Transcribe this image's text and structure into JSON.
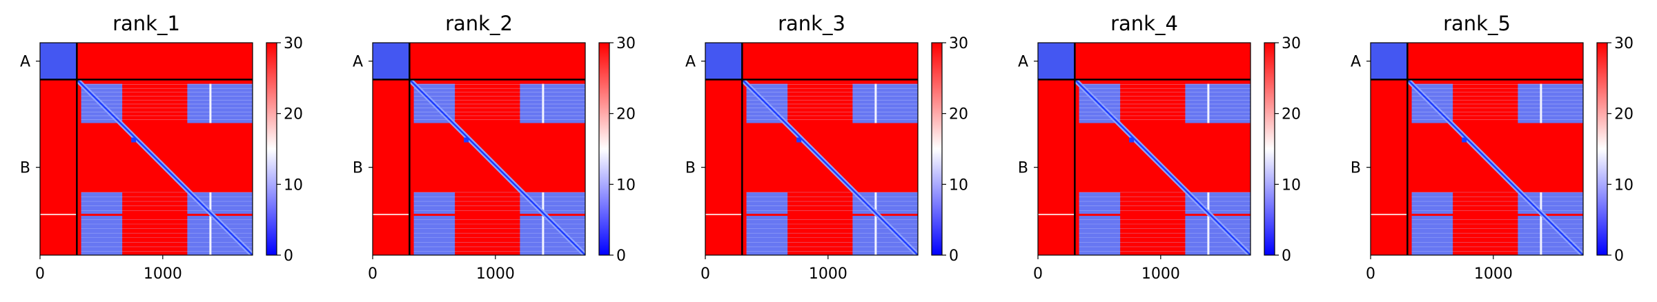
{
  "colorbar": {
    "ticks": [
      "0",
      "10",
      "20",
      "30"
    ],
    "vmin": 0,
    "vmax": 30,
    "colormap": [
      "#0000ff",
      "#ffffff",
      "#ff0000"
    ]
  },
  "chart_data": [
    {
      "type": "heatmap",
      "title": "rank_1",
      "xticks": [
        "0",
        "1000"
      ],
      "yticks": [
        "A",
        "B"
      ],
      "xlim": [
        0,
        1732
      ],
      "chain_boundary": 300,
      "cmap": "bwr",
      "vmin": 0,
      "vmax": 30
    },
    {
      "type": "heatmap",
      "title": "rank_2",
      "xticks": [
        "0",
        "1000"
      ],
      "yticks": [
        "A",
        "B"
      ],
      "xlim": [
        0,
        1732
      ],
      "chain_boundary": 300,
      "cmap": "bwr",
      "vmin": 0,
      "vmax": 30
    },
    {
      "type": "heatmap",
      "title": "rank_3",
      "xticks": [
        "0",
        "1000"
      ],
      "yticks": [
        "A",
        "B"
      ],
      "xlim": [
        0,
        1732
      ],
      "chain_boundary": 300,
      "cmap": "bwr",
      "vmin": 0,
      "vmax": 30
    },
    {
      "type": "heatmap",
      "title": "rank_4",
      "xticks": [
        "0",
        "1000"
      ],
      "yticks": [
        "A",
        "B"
      ],
      "xlim": [
        0,
        1732
      ],
      "chain_boundary": 300,
      "cmap": "bwr",
      "vmin": 0,
      "vmax": 30
    },
    {
      "type": "heatmap",
      "title": "rank_5",
      "xticks": [
        "0",
        "1000"
      ],
      "yticks": [
        "A",
        "B"
      ],
      "xlim": [
        0,
        1732
      ],
      "chain_boundary": 300,
      "cmap": "bwr",
      "vmin": 0,
      "vmax": 30
    }
  ]
}
